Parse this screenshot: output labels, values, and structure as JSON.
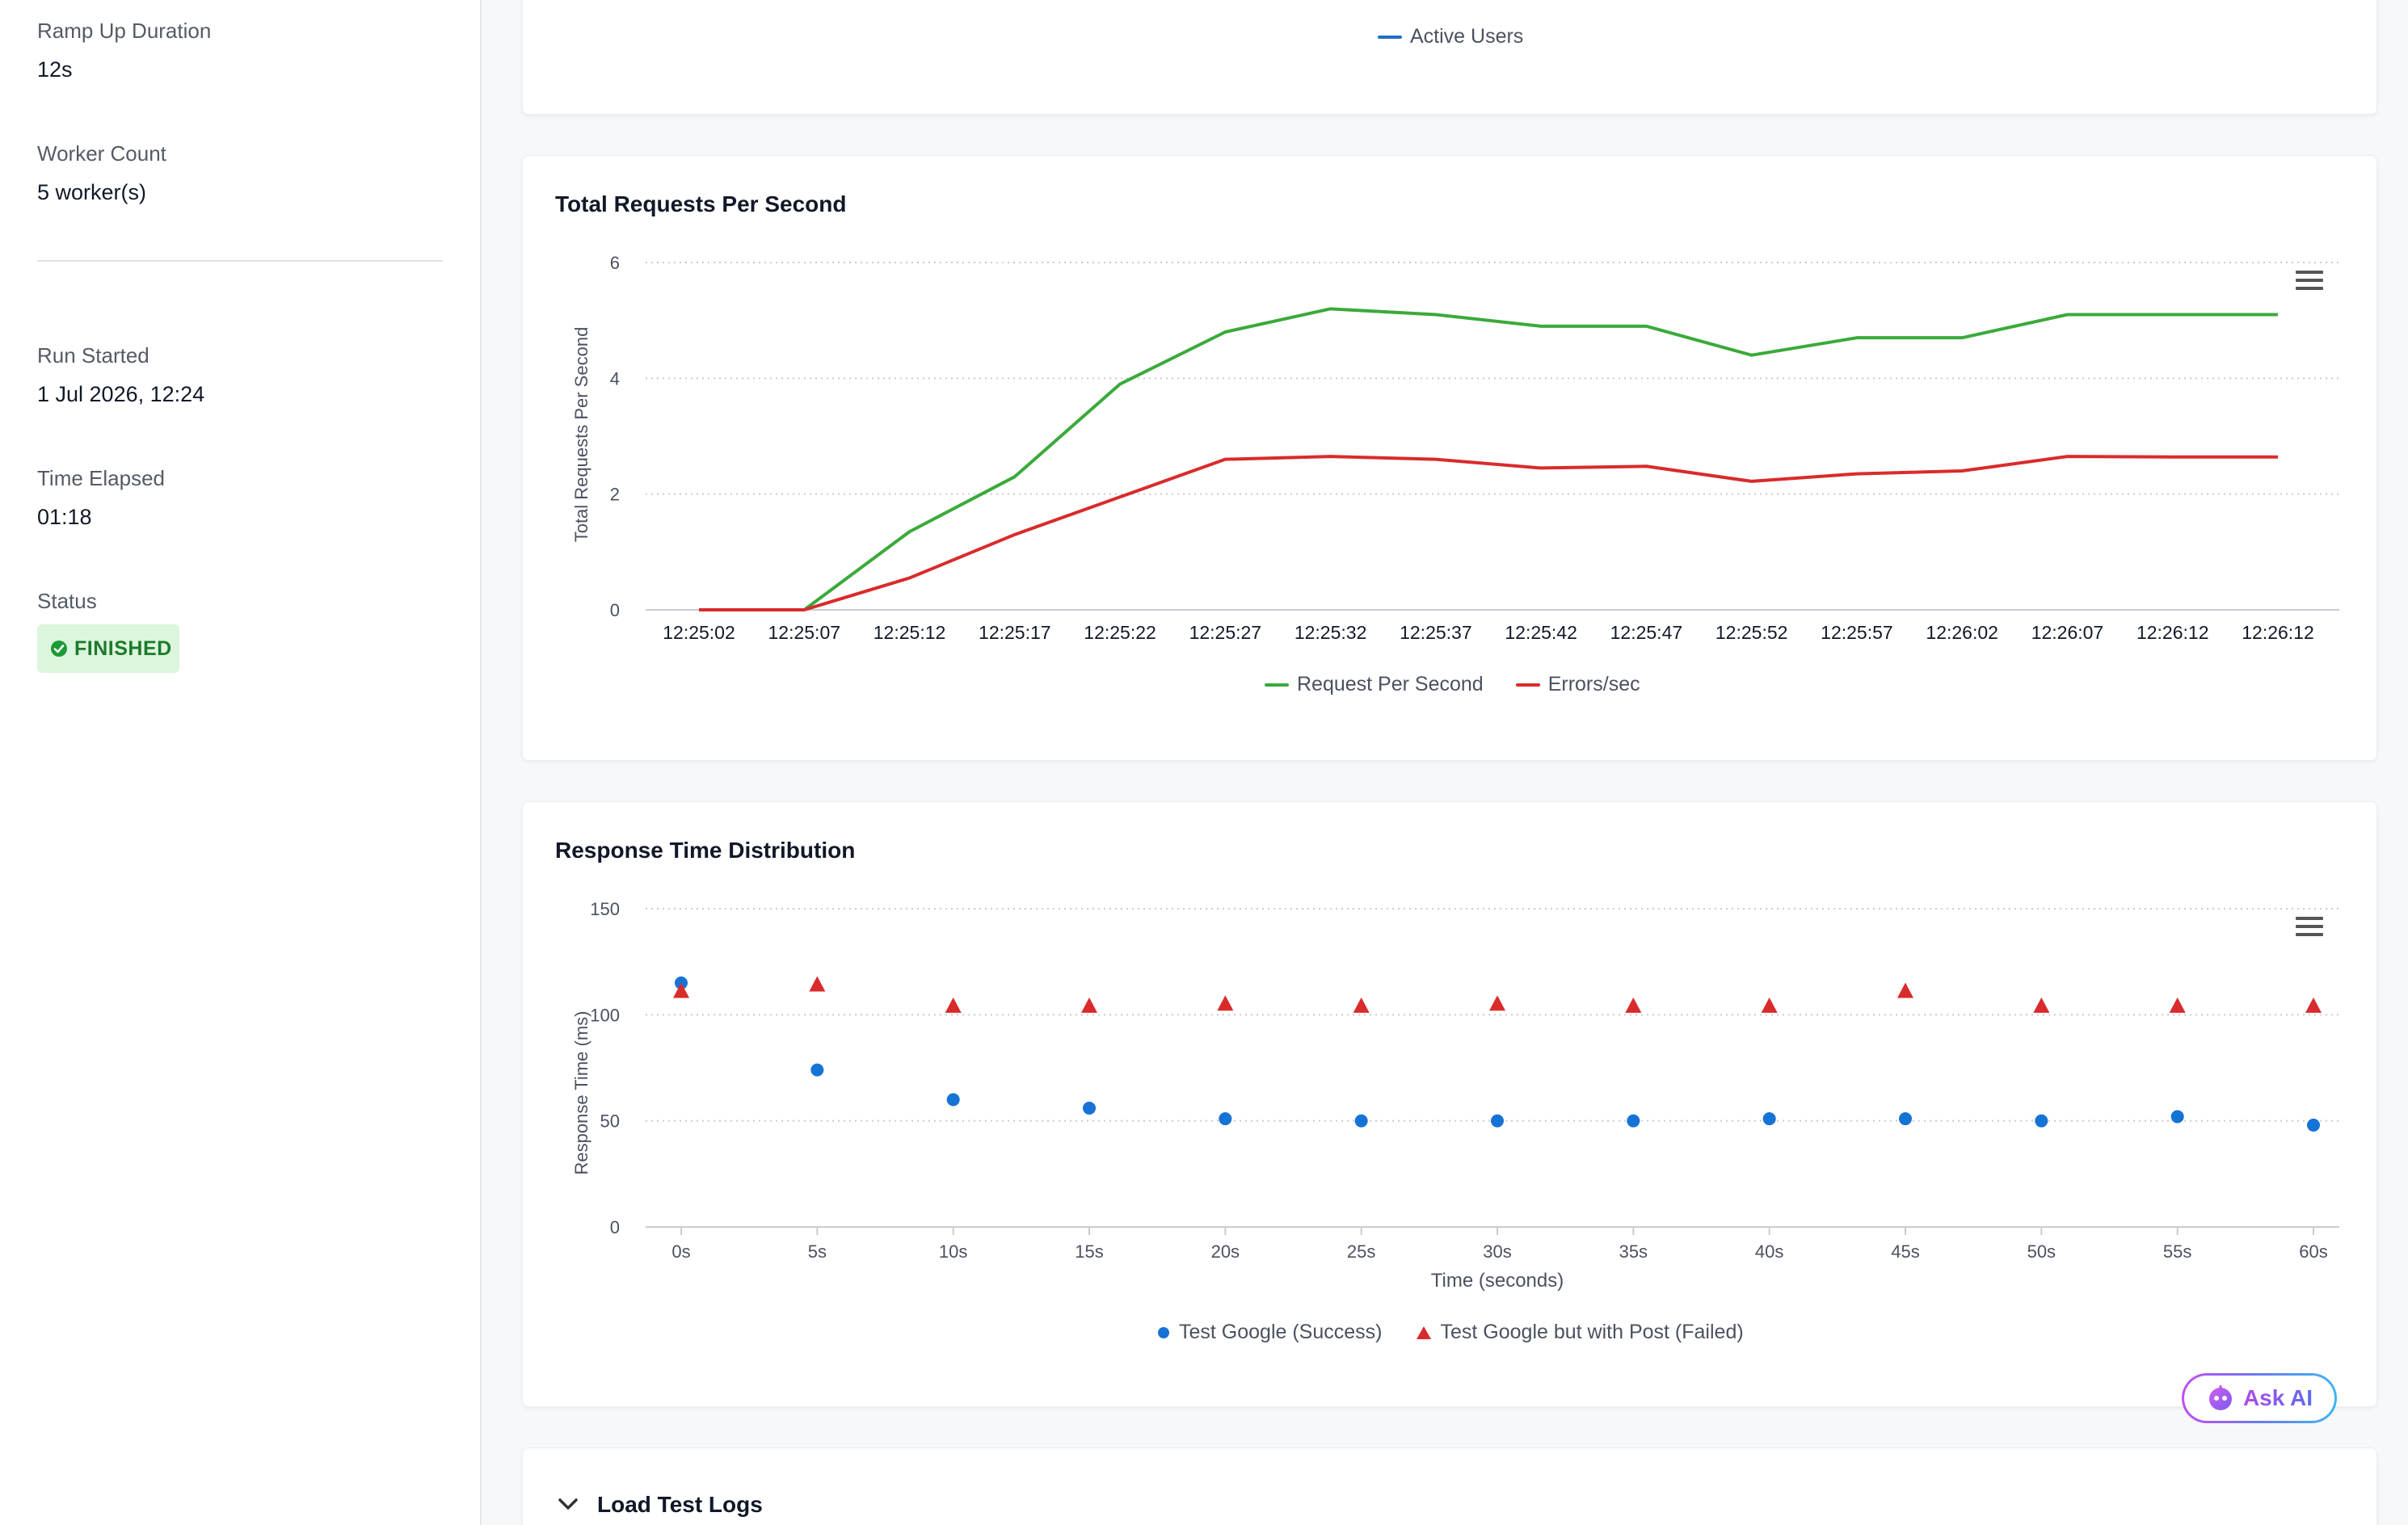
{
  "sidebar": {
    "fields": [
      {
        "label": "Ramp Up Duration",
        "value": "12s"
      },
      {
        "label": "Worker Count",
        "value": "5 worker(s)"
      },
      {
        "label": "Run Started",
        "value": "1 Jul 2026, 12:24"
      },
      {
        "label": "Time Elapsed",
        "value": "01:18"
      }
    ],
    "status_label": "Status",
    "status_value": "FINISHED",
    "status_color": "#1d7a2b"
  },
  "active_users_card": {
    "legend": [
      {
        "label": "Active Users",
        "color": "#1f6fc9"
      }
    ]
  },
  "ask_ai": {
    "label": "Ask AI",
    "icon": "robot-icon"
  },
  "logs": {
    "title": "Load Test Logs",
    "icon": "chevron-down-icon"
  },
  "chart_data": [
    {
      "type": "line",
      "title": "Total Requests Per Second",
      "xlabel": "",
      "ylabel": "Total Requests Per Second",
      "ylim": [
        0,
        6
      ],
      "yticks": [
        0,
        2,
        4,
        6
      ],
      "grid": true,
      "legend_position": "bottom",
      "categories": [
        "12:25:02",
        "12:25:07",
        "12:25:12",
        "12:25:17",
        "12:25:22",
        "12:25:27",
        "12:25:32",
        "12:25:37",
        "12:25:42",
        "12:25:47",
        "12:25:52",
        "12:25:57",
        "12:26:02",
        "12:26:07",
        "12:26:12",
        "12:26:12"
      ],
      "series": [
        {
          "name": "Request Per Second",
          "color": "#3aaa3a",
          "values": [
            null,
            0,
            1.35,
            2.3,
            3.9,
            4.8,
            5.2,
            5.1,
            4.9,
            4.9,
            4.4,
            4.7,
            4.7,
            5.1,
            5.1,
            5.1
          ]
        },
        {
          "name": "Errors/sec",
          "color": "#d92b2b",
          "values": [
            0,
            0,
            0.55,
            1.3,
            1.95,
            2.6,
            2.65,
            2.6,
            2.45,
            2.48,
            2.22,
            2.35,
            2.4,
            2.65,
            2.64,
            2.64
          ]
        }
      ]
    },
    {
      "type": "scatter",
      "title": "Response Time Distribution",
      "xlabel": "Time (seconds)",
      "ylabel": "Response Time (ms)",
      "ylim": [
        0,
        150
      ],
      "yticks": [
        0,
        50,
        100,
        150
      ],
      "xticks": [
        "0s",
        "5s",
        "10s",
        "15s",
        "20s",
        "25s",
        "30s",
        "35s",
        "40s",
        "45s",
        "50s",
        "55s",
        "60s"
      ],
      "grid": true,
      "legend_position": "bottom",
      "series": [
        {
          "name": "Test Google (Success)",
          "color": "#1673d6",
          "marker": "circle",
          "x": [
            0,
            5,
            10,
            15,
            20,
            25,
            30,
            35,
            40,
            45,
            50,
            55,
            60
          ],
          "y": [
            115,
            74,
            60,
            56,
            51,
            50,
            50,
            50,
            51,
            51,
            50,
            52,
            48
          ]
        },
        {
          "name": "Test Google but with Post (Failed)",
          "color": "#d92b2b",
          "marker": "triangle",
          "x": [
            0,
            5,
            10,
            15,
            20,
            25,
            30,
            35,
            40,
            45,
            50,
            55,
            60
          ],
          "y": [
            111,
            114,
            104,
            104,
            105,
            104,
            105,
            104,
            104,
            111,
            104,
            104,
            104
          ]
        }
      ]
    }
  ]
}
